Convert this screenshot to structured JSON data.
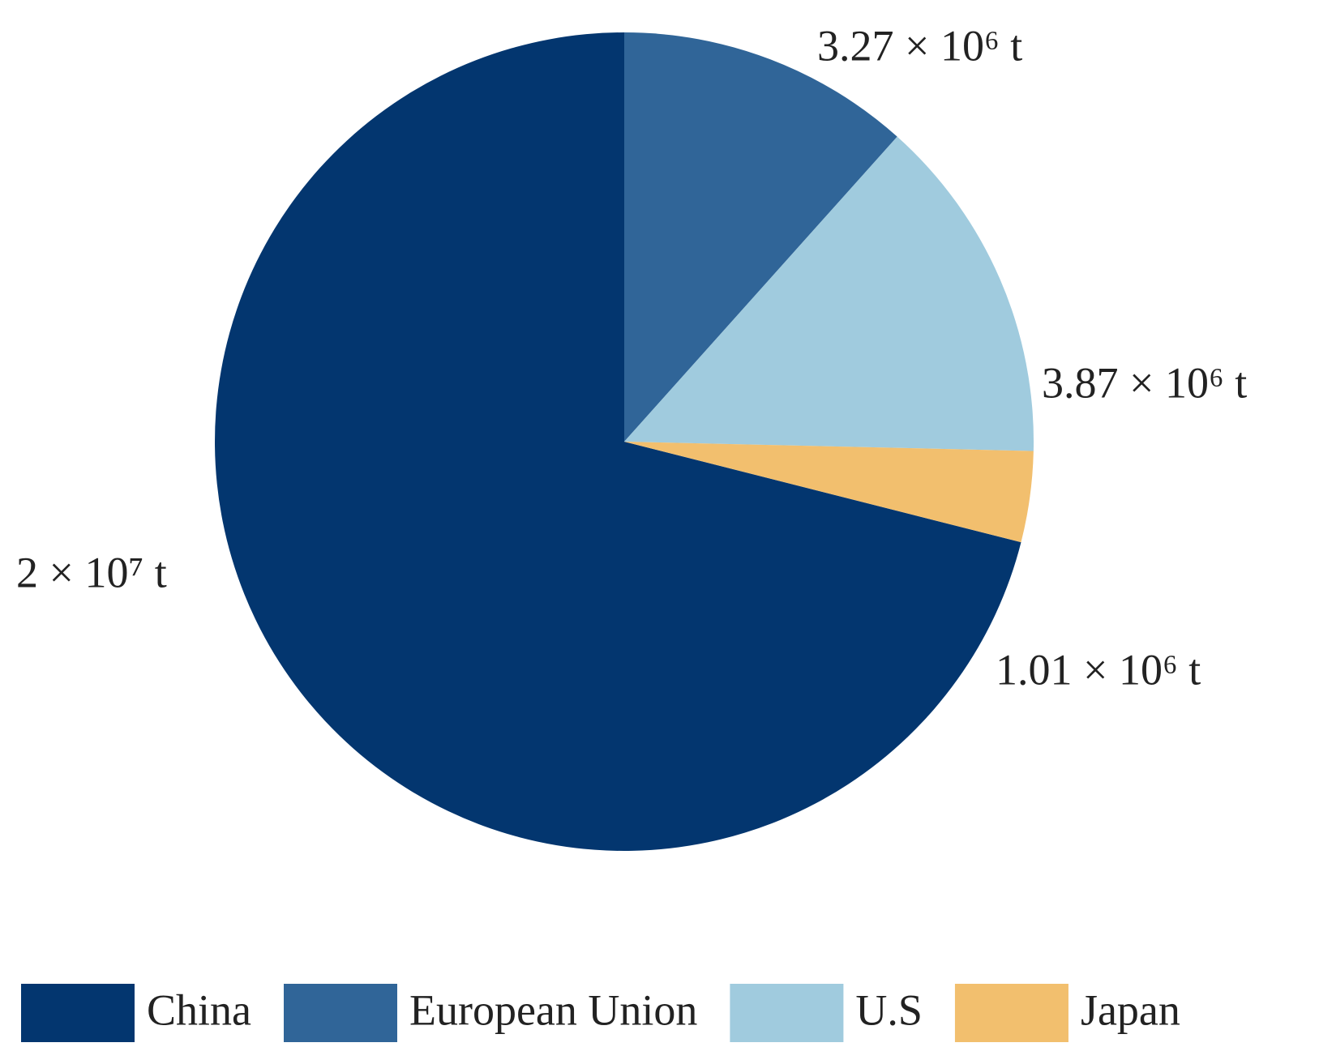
{
  "chart_data": {
    "type": "pie",
    "categories": [
      "China",
      "European Union",
      "U.S",
      "Japan"
    ],
    "values": [
      20000000,
      3270000,
      3870000,
      1010000
    ],
    "value_labels": [
      "2 × 10⁷ t",
      "3.27 × 10⁶ t",
      "3.87 × 10⁶ t",
      "1.01 × 10⁶ t"
    ],
    "colors": [
      "#03366f",
      "#306598",
      "#a0cbde",
      "#f2bf6e"
    ],
    "legend": "bottom"
  }
}
